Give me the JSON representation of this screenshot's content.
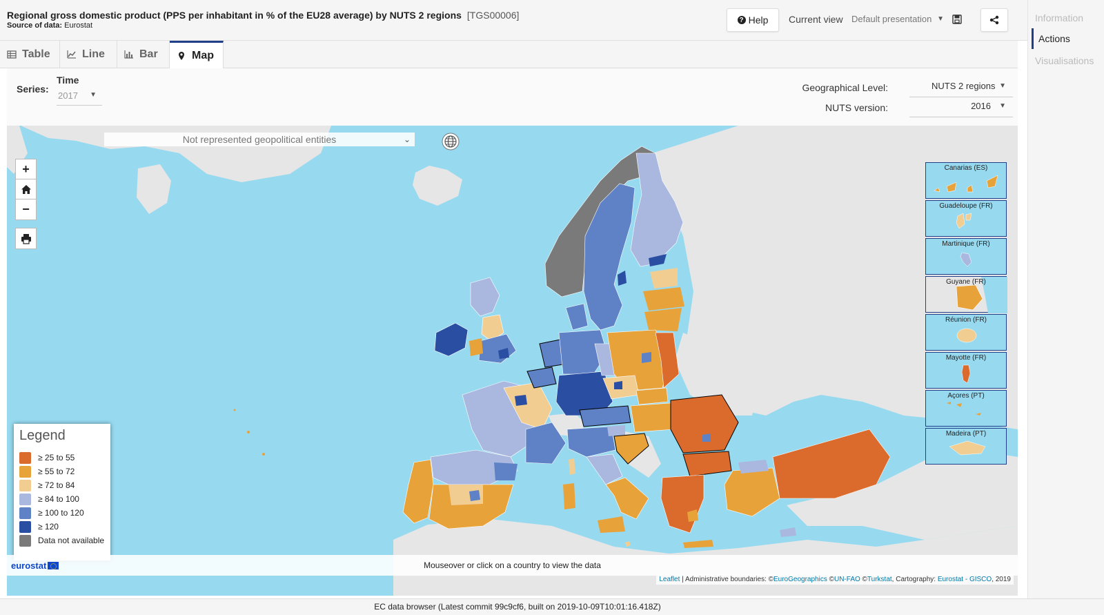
{
  "header": {
    "title": "Regional gross domestic product (PPS per inhabitant in % of the EU28 average) by NUTS 2 regions",
    "dataset_code": "[TGS00006]",
    "source_label": "Source of data:",
    "source_value": "Eurostat",
    "help_label": "Help",
    "current_view_label": "Current view",
    "current_view_value": "Default presentation"
  },
  "side_panel": {
    "items": [
      "Information",
      "Actions",
      "Visualisations"
    ],
    "active": "Actions"
  },
  "tabs": [
    {
      "label": "Table",
      "icon": "table-icon"
    },
    {
      "label": "Line",
      "icon": "line-chart-icon"
    },
    {
      "label": "Bar",
      "icon": "bar-chart-icon"
    },
    {
      "label": "Map",
      "icon": "map-marker-icon",
      "active": true
    }
  ],
  "controls": {
    "series_label": "Series:",
    "time_label": "Time",
    "time_value": "2017",
    "geo_level_label": "Geographical Level:",
    "geo_level_value": "NUTS 2 regions",
    "nuts_version_label": "NUTS version:",
    "nuts_version_value": "2016"
  },
  "map": {
    "npge_placeholder": "Not represented geopolitical entities",
    "zoom_in": "+",
    "zoom_out": "−",
    "hover_hint": "Mouseover or click on a country to view the data",
    "logo_text": "eurostat",
    "attribution": {
      "leaflet": "Leaflet",
      "sep1": " | Administrative boundaries: ©",
      "eurogeographics": "EuroGeographics",
      "sep2": " ©",
      "unfao": "UN-FAO",
      "sep3": " ©",
      "turkstat": "Turkstat",
      "sep4": ", Cartography: ",
      "gisco": "Eurostat - GISCO",
      "year": ", 2019"
    },
    "colors": {
      "sea": "#97daf0",
      "land_non_eu": "#e6e6e6",
      "class1": "#db6b2c",
      "class2": "#e8a23a",
      "class3": "#f1cd92",
      "class4": "#aab8e0",
      "class5": "#5f82c6",
      "class6": "#2a4ea1",
      "na": "#7a7a7a"
    }
  },
  "legend": {
    "title": "Legend",
    "items": [
      {
        "label": "≥ 25 to 55",
        "color": "#db6b2c"
      },
      {
        "label": "≥ 55 to 72",
        "color": "#e8a23a"
      },
      {
        "label": "≥ 72 to 84",
        "color": "#f1cd92"
      },
      {
        "label": "≥ 84 to 100",
        "color": "#aab8e0"
      },
      {
        "label": "≥ 100 to 120",
        "color": "#5f82c6"
      },
      {
        "label": "≥ 120",
        "color": "#2a4ea1"
      },
      {
        "label": "Data not available",
        "color": "#7a7a7a"
      }
    ]
  },
  "insets": [
    {
      "label": "Canarias (ES)",
      "fill": "#e8a23a"
    },
    {
      "label": "Guadeloupe (FR)",
      "fill": "#f1cd92"
    },
    {
      "label": "Martinique (FR)",
      "fill": "#aab8e0"
    },
    {
      "label": "Guyane (FR)",
      "fill": "#e8a23a"
    },
    {
      "label": "Réunion (FR)",
      "fill": "#f1cd92"
    },
    {
      "label": "Mayotte (FR)",
      "fill": "#db6b2c"
    },
    {
      "label": "Açores (PT)",
      "fill": "#e8a23a"
    },
    {
      "label": "Madeira (PT)",
      "fill": "#f1cd92"
    }
  ],
  "footer": {
    "text": "EC data browser (Latest commit 99c9cf6, built on 2019-10-09T10:01:16.418Z)"
  }
}
